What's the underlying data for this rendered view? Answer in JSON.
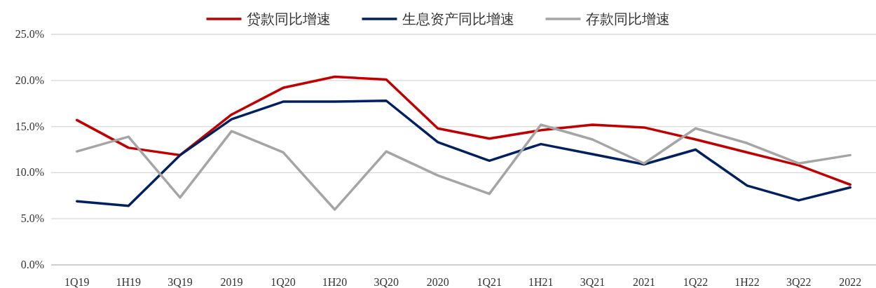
{
  "chart_data": {
    "type": "line",
    "categories": [
      "1Q19",
      "1H19",
      "3Q19",
      "2019",
      "1Q20",
      "1H20",
      "3Q20",
      "2020",
      "1Q21",
      "1H21",
      "3Q21",
      "2021",
      "1Q22",
      "1H22",
      "3Q22",
      "2022"
    ],
    "series": [
      {
        "name": "贷款同比增速",
        "color": "#c00000",
        "values": [
          15.7,
          12.7,
          11.9,
          16.3,
          19.2,
          20.4,
          20.1,
          14.8,
          13.7,
          14.6,
          15.2,
          14.9,
          13.6,
          12.2,
          10.8,
          8.7
        ]
      },
      {
        "name": "生息资产同比增速",
        "color": "#002060",
        "values": [
          6.9,
          6.4,
          11.9,
          15.8,
          17.7,
          17.7,
          17.8,
          13.3,
          11.3,
          13.1,
          12.0,
          10.9,
          12.5,
          8.6,
          7.0,
          8.4
        ]
      },
      {
        "name": "存款同比增速",
        "color": "#a5a5a5",
        "values": [
          12.3,
          13.9,
          7.3,
          14.5,
          12.2,
          6.0,
          12.3,
          9.7,
          7.7,
          15.2,
          13.6,
          11.0,
          14.8,
          13.2,
          11.0,
          11.9
        ]
      }
    ],
    "ylim": [
      0,
      25
    ],
    "yticks": [
      {
        "value": 0,
        "label": "0.0%"
      },
      {
        "value": 5,
        "label": "5.0%"
      },
      {
        "value": 10,
        "label": "10.0%"
      },
      {
        "value": 15,
        "label": "15.0%"
      },
      {
        "value": 20,
        "label": "20.0%"
      },
      {
        "value": 25,
        "label": "25.0%"
      }
    ],
    "grid": "y",
    "legend": "top",
    "marker": "none",
    "line_style": "solid"
  }
}
